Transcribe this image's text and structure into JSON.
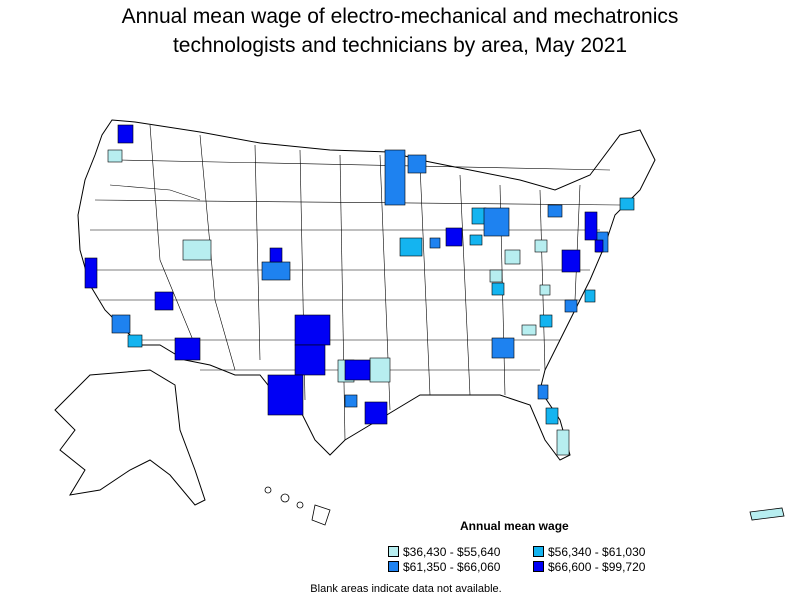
{
  "title": {
    "line1": "Annual mean wage of electro-mechanical and mechatronics",
    "line2": "technologists and technicians by area, May 2021"
  },
  "legend": {
    "title": "Annual mean wage",
    "items": [
      {
        "label": "$36,430 - $55,640",
        "color": "#b7eef0"
      },
      {
        "label": "$56,340 - $61,030",
        "color": "#14b4f0"
      },
      {
        "label": "$61,350 - $66,060",
        "color": "#1e82f0"
      },
      {
        "label": "$66,600 - $99,720",
        "color": "#0000f5"
      }
    ]
  },
  "footnote": "Blank areas indicate data not available.",
  "map": {
    "regions": [
      "United States (contiguous)",
      "Alaska",
      "Hawaii",
      "Puerto Rico"
    ],
    "shaded_area_counts_by_class": "not printed"
  }
}
